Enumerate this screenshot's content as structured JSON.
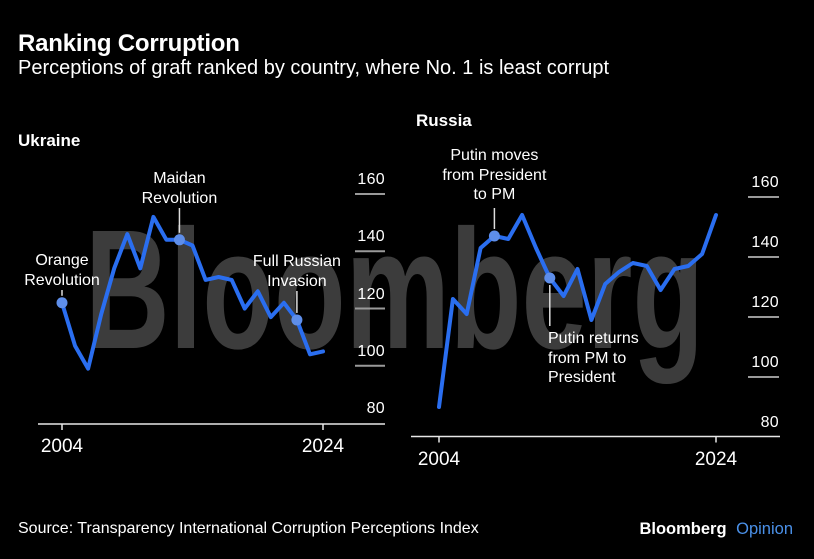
{
  "header": {
    "title": "Ranking Corruption",
    "subtitle": "Perceptions of graft ranked by country, where No. 1 is least corrupt"
  },
  "watermark": "Bloomberg",
  "chart_data": [
    {
      "type": "line",
      "title": "Ukraine",
      "series_name": "Ukraine corruption perceptions rank",
      "x": [
        2004,
        2005,
        2006,
        2007,
        2008,
        2009,
        2010,
        2011,
        2012,
        2013,
        2014,
        2015,
        2016,
        2017,
        2018,
        2019,
        2020,
        2021,
        2022,
        2023,
        2024
      ],
      "values": [
        122,
        107,
        99,
        118,
        134,
        146,
        134,
        152,
        144,
        144,
        142,
        130,
        131,
        130,
        120,
        126,
        117,
        122,
        116,
        104,
        105
      ],
      "xlim": [
        2004,
        2024
      ],
      "ylim": [
        80,
        160
      ],
      "yticks": [
        "160",
        "140",
        "120",
        "100",
        "80"
      ],
      "xticks": [
        "2004",
        "2024"
      ],
      "grid": "off",
      "legend": "none",
      "annotations": [
        {
          "year": 2004,
          "value": 122,
          "lines": [
            "Orange",
            "Revolution"
          ]
        },
        {
          "year": 2013,
          "value": 144,
          "lines": [
            "Maidan",
            "Revolution"
          ]
        },
        {
          "year": 2022,
          "value": 116,
          "lines": [
            "Full Russian",
            "Invasion"
          ]
        }
      ]
    },
    {
      "type": "line",
      "title": "Russia",
      "series_name": "Russia corruption perceptions rank",
      "x": [
        2004,
        2005,
        2006,
        2007,
        2008,
        2009,
        2010,
        2011,
        2012,
        2013,
        2014,
        2015,
        2016,
        2017,
        2018,
        2019,
        2020,
        2021,
        2022,
        2023,
        2024
      ],
      "values": [
        90,
        126,
        121,
        143,
        147,
        146,
        154,
        143,
        133,
        127,
        136,
        119,
        131,
        135,
        138,
        137,
        129,
        136,
        137,
        141,
        154
      ],
      "xlim": [
        2004,
        2024
      ],
      "ylim": [
        80,
        160
      ],
      "yticks": [
        "160",
        "140",
        "120",
        "100",
        "80"
      ],
      "xticks": [
        "2004",
        "2024"
      ],
      "grid": "off",
      "legend": "none",
      "annotations": [
        {
          "year": 2008,
          "value": 147,
          "lines": [
            "Putin moves",
            "from President",
            "to PM"
          ]
        },
        {
          "year": 2012,
          "value": 133,
          "lines": [
            "Putin returns",
            "from PM to",
            "President"
          ]
        }
      ]
    }
  ],
  "footer": {
    "source": "Source: Transparency International Corruption Perceptions Index",
    "brand": "Bloomberg",
    "brand_suffix": "Opinion"
  },
  "colors": {
    "background": "#000000",
    "line": "#2a6ef0",
    "marker": "#5e8eea",
    "watermark": "#3c3c3c",
    "text": "#ffffff",
    "axis": "#e8e8e8",
    "tick_line": "#9a9a9a",
    "leader_line": "#dddddd",
    "opinion": "#4a90e8"
  }
}
